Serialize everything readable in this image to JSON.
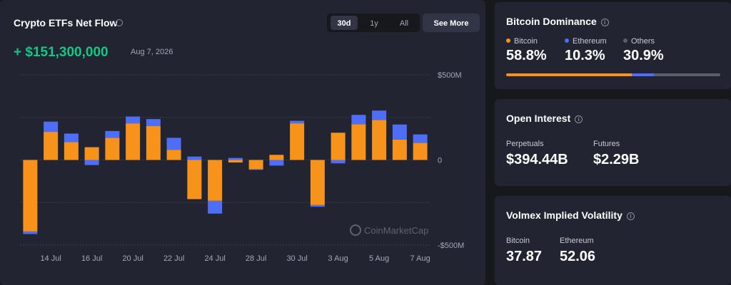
{
  "chart_data": {
    "type": "bar",
    "stacked": true,
    "title": "Crypto ETFs Net Flow",
    "net_flow": "+ $151,300,000",
    "date": "Aug 7, 2026",
    "buttons": [
      "30d",
      "1y",
      "All"
    ],
    "active_button": "30d",
    "see_more": "See More",
    "watermark": "CoinMarketCap",
    "categories": [
      null,
      "14 Jul",
      null,
      "16 Jul",
      null,
      "20 Jul",
      null,
      "22 Jul",
      null,
      "24 Jul",
      null,
      "28 Jul",
      null,
      "30 Jul",
      null,
      "3 Aug",
      null,
      "5 Aug",
      null,
      "7 Aug"
    ],
    "series": [
      {
        "name": "Bitcoin",
        "color": "#f7931a",
        "values": [
          -420,
          165,
          105,
          75,
          130,
          215,
          200,
          60,
          -230,
          -240,
          -15,
          -55,
          30,
          215,
          -265,
          160,
          210,
          235,
          120,
          100
        ]
      },
      {
        "name": "Ethereum",
        "color": "#4f6ef7",
        "values": [
          -15,
          60,
          50,
          -30,
          40,
          40,
          40,
          70,
          20,
          -75,
          12,
          -3,
          -33,
          15,
          -10,
          -20,
          55,
          55,
          88,
          50
        ]
      }
    ],
    "ylim": [
      -500,
      500
    ],
    "yticks": [
      {
        "value": 500,
        "label": "$500M"
      },
      0,
      {
        "value": -500,
        "label": "-$500M"
      }
    ],
    "minor_grid": [
      250,
      -250
    ],
    "grid": true
  },
  "dominance": {
    "title": "Bitcoin Dominance",
    "items": [
      {
        "name": "Bitcoin",
        "value": 58.8,
        "value_label": "58.8%",
        "color": "#f7931a"
      },
      {
        "name": "Ethereum",
        "value": 10.3,
        "value_label": "10.3%",
        "color": "#4f6ef7"
      },
      {
        "name": "Others",
        "value": 30.9,
        "value_label": "30.9%",
        "color": "#5b5e6b"
      }
    ]
  },
  "open_interest": {
    "title": "Open Interest",
    "items": [
      {
        "name": "Perpetuals",
        "value": "$394.44B"
      },
      {
        "name": "Futures",
        "value": "$2.29B"
      }
    ]
  },
  "volatility": {
    "title": "Volmex Implied Volatility",
    "items": [
      {
        "name": "Bitcoin",
        "value": "37.87"
      },
      {
        "name": "Ethereum",
        "value": "52.06"
      }
    ]
  }
}
